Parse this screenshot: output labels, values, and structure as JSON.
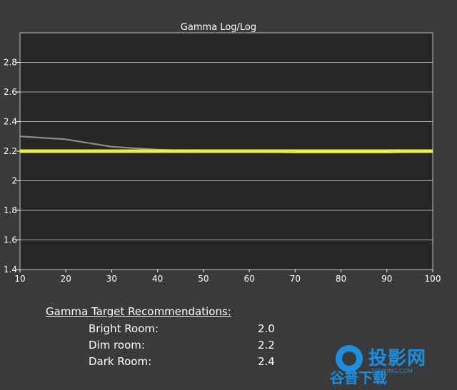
{
  "chart_data": {
    "type": "line",
    "title": "Gamma Log/Log",
    "xlabel": "",
    "ylabel": "",
    "xlim": [
      10,
      100
    ],
    "ylim": [
      1.4,
      3.0
    ],
    "x_ticks": [
      10,
      20,
      30,
      40,
      50,
      60,
      70,
      80,
      90,
      100
    ],
    "y_ticks": [
      1.4,
      1.6,
      1.8,
      2,
      2.2,
      2.4,
      2.6,
      2.8
    ],
    "y_tick_labels": [
      "1.4",
      "1.6",
      "1.8",
      "2",
      "2.2",
      "2.4",
      "2.6",
      "2.8"
    ],
    "grid": true,
    "series": [
      {
        "style": "measured",
        "color": "#8c8c8c",
        "x": [
          10,
          20,
          30,
          40,
          50,
          60,
          70,
          80,
          90,
          100
        ],
        "y": [
          2.3,
          2.28,
          2.23,
          2.21,
          2.2,
          2.2,
          2.19,
          2.19,
          2.19,
          2.2
        ]
      },
      {
        "style": "target",
        "color": "#f5f542",
        "x": [
          10,
          100
        ],
        "y": [
          2.2,
          2.2
        ]
      }
    ],
    "colors": {
      "background": "#3a3a3a",
      "plot_area": "#262626",
      "grid": "#d8d8d8",
      "target_line": "#f5f542",
      "measured_line": "#8c8c8c"
    }
  },
  "recommendations": {
    "title": "Gamma Target Recommendations:",
    "rows": [
      {
        "label": "Bright Room:",
        "value": "2.0"
      },
      {
        "label": "Dim room:",
        "value": "2.2"
      },
      {
        "label": "Dark Room:",
        "value": "2.4"
      }
    ]
  },
  "watermark": {
    "text_primary": "投影网",
    "text_secondary": "谷普下载",
    "domain": "TOUYING.COM"
  }
}
